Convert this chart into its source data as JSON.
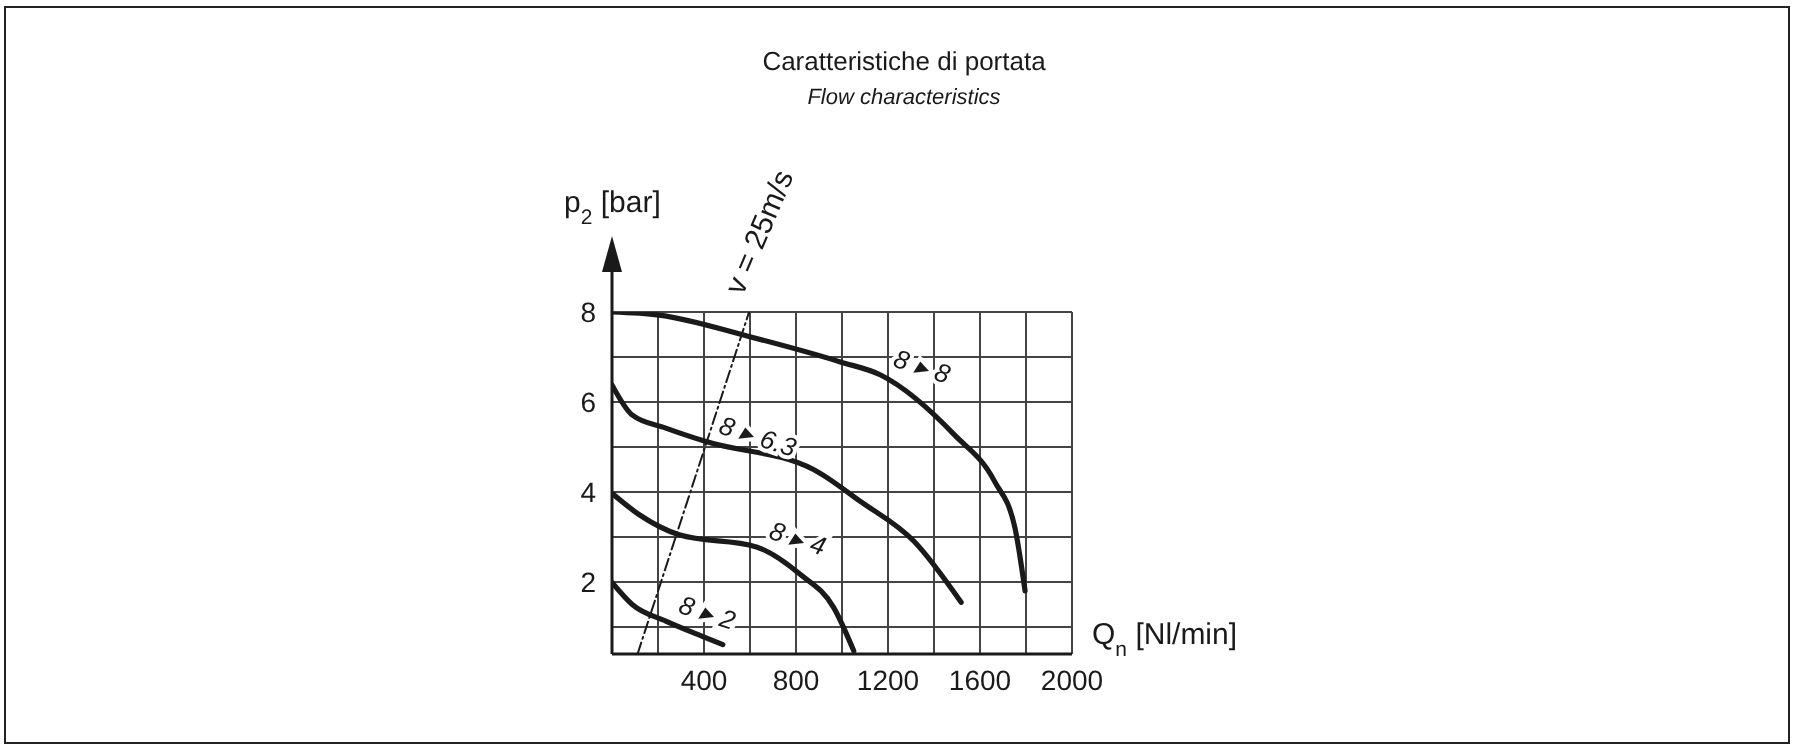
{
  "chart_data": {
    "type": "line",
    "title": "Caratteristiche di portata",
    "subtitle": "Flow characteristics",
    "xlabel": "Q$_{n}$ [Nl/min]",
    "ylabel": "p$_{2}$ [bar]",
    "xlim": [
      0,
      2000
    ],
    "xticks": [
      {
        "value": 0,
        "label": null
      },
      {
        "value": 200,
        "label": null
      },
      400,
      {
        "value": 600,
        "label": null
      },
      800,
      {
        "value": 1000,
        "label": null
      },
      1200,
      {
        "value": 1400,
        "label": null
      },
      1600,
      {
        "value": 1800,
        "label": null
      },
      2000
    ],
    "ylim": [
      0.4,
      8
    ],
    "yticks": [
      {
        "value": 1,
        "label": null
      },
      2,
      {
        "value": 3,
        "label": null
      },
      4,
      {
        "value": 5,
        "label": null
      },
      6,
      {
        "value": 7,
        "label": null
      },
      8
    ],
    "grid": true,
    "marker": "none",
    "series": [
      {
        "name": "8 ▸ 8",
        "color": "#1a1a1a",
        "x": [
          0,
          204,
          599,
          993,
          1168,
          1489,
          1664,
          1752,
          1796
        ],
        "values": [
          8,
          7.93,
          7.45,
          6.89,
          6.6,
          5.27,
          4.23,
          3.2,
          1.8
        ]
      },
      {
        "name": "8 ▸ 6.3",
        "color": "#1a1a1a",
        "x": [
          0,
          88,
          234,
          409,
          876,
          1080,
          1314,
          1518
        ],
        "values": [
          6.38,
          5.71,
          5.42,
          5.12,
          4.5,
          3.79,
          2.9,
          1.55
        ]
      },
      {
        "name": "8 ▸ 4",
        "color": "#1a1a1a",
        "x": [
          0,
          117,
          292,
          628,
          818,
          964,
          1051
        ],
        "values": [
          3.97,
          3.5,
          3.05,
          2.78,
          2.17,
          1.43,
          0.47
        ]
      },
      {
        "name": "8 ▸ 2",
        "color": "#1a1a1a",
        "x": [
          0,
          88,
          234,
          409,
          482
        ],
        "values": [
          1.99,
          1.5,
          1.13,
          0.76,
          0.61
        ]
      },
      {
        "name": "v = 25m/s",
        "color": "#1a1a1a",
        "line_style": "dashed",
        "x": [
          111,
          596
        ],
        "values": [
          0.4,
          8
        ]
      }
    ]
  }
}
